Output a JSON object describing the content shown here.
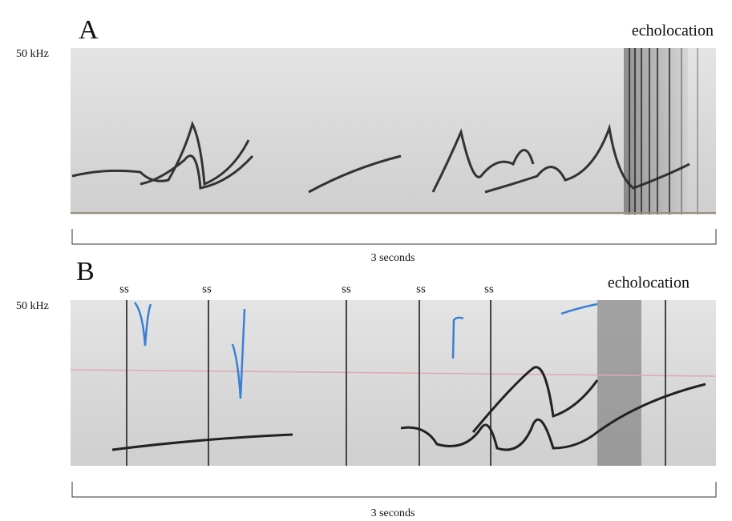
{
  "panels": [
    {
      "label": "A",
      "freq_label": "50 kHz",
      "annotations": [
        "echolocation"
      ],
      "duration": "3 seconds"
    },
    {
      "label": "B",
      "freq_label": "50 kHz",
      "annotations": [
        "ss",
        "ss",
        "ss",
        "ss",
        "ss",
        "echolocation"
      ],
      "duration": "3 seconds"
    }
  ]
}
